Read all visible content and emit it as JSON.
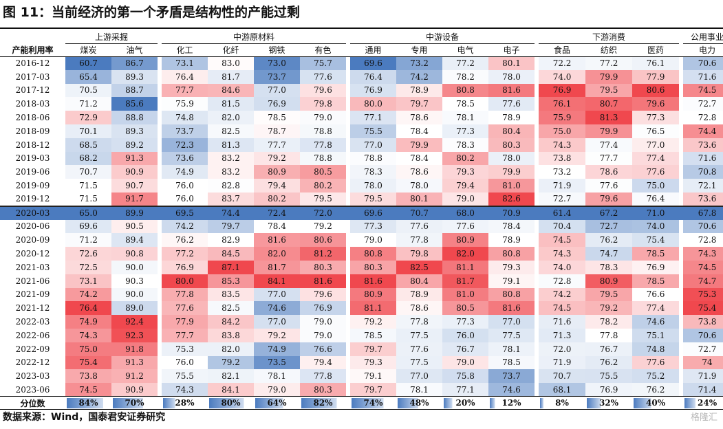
{
  "title": "图 11：当前经济的第一个矛盾是结构性的产能过剩",
  "source": "数据来源：Wind，国泰君安证券研究",
  "watermark": "格隆汇",
  "colors": {
    "low": "#4b7bbf",
    "mid": "#ffffff",
    "high": "#f0484e",
    "highlight_row": "#4b7bbf",
    "percentile_bar": "#4b7bbf"
  },
  "chart_data": {
    "type": "heatmap",
    "row_header": "产能利用率",
    "groups": [
      {
        "name": "上游采掘",
        "span": 2
      },
      {
        "name": "中游原材料",
        "span": 4
      },
      {
        "name": "中游设备",
        "span": 4
      },
      {
        "name": "下游消费",
        "span": 3
      },
      {
        "name": "公用事业",
        "span": 1
      }
    ],
    "columns": [
      "煤炭",
      "油气",
      "化工",
      "化纤",
      "钢铁",
      "有色",
      "通用",
      "专用",
      "电气",
      "电子",
      "食品",
      "纺织",
      "医药",
      "电力"
    ],
    "rows": [
      {
        "label": "2016-12",
        "values": [
          "60.7",
          "86.7",
          "73.1",
          "83.0",
          "73.0",
          "75.7",
          "69.6",
          "73.2",
          "77.2",
          "80.1",
          "72.2",
          "77.2",
          "76.1",
          "70.6"
        ]
      },
      {
        "label": "2017-03",
        "values": [
          "65.4",
          "89.3",
          "76.4",
          "81.7",
          "73.7",
          "77.6",
          "76.4",
          "74.2",
          "78.2",
          "78.0",
          "74.0",
          "79.9",
          "77.9",
          "71.6"
        ]
      },
      {
        "label": "2017-12",
        "values": [
          "70.5",
          "88.7",
          "77.7",
          "84.6",
          "77.0",
          "79.6",
          "76.9",
          "78.9",
          "80.8",
          "81.6",
          "76.9",
          "79.5",
          "80.6",
          "74.5"
        ]
      },
      {
        "label": "2018-03",
        "values": [
          "71.2",
          "85.6",
          "75.9",
          "81.5",
          "76.9",
          "79.8",
          "80.0",
          "79.7",
          "78.5",
          "77.6",
          "76.1",
          "80.7",
          "79.6",
          "72.7"
        ]
      },
      {
        "label": "2018-06",
        "values": [
          "72.9",
          "88.8",
          "74.8",
          "82.0",
          "78.5",
          "79.0",
          "77.1",
          "78.6",
          "78.1",
          "78.9",
          "75.9",
          "81.3",
          "77.3",
          "72.8"
        ]
      },
      {
        "label": "2018-09",
        "values": [
          "70.1",
          "89.3",
          "73.7",
          "82.5",
          "78.7",
          "78.8",
          "75.5",
          "78.4",
          "77.3",
          "80.4",
          "75.0",
          "79.9",
          "76.5",
          "74.4"
        ]
      },
      {
        "label": "2018-12",
        "values": [
          "68.5",
          "89.2",
          "72.3",
          "81.3",
          "77.7",
          "77.8",
          "77.0",
          "79.9",
          "78.3",
          "80.3",
          "74.3",
          "77.4",
          "77.0",
          "73.6"
        ]
      },
      {
        "label": "2019-03",
        "values": [
          "68.2",
          "91.3",
          "73.6",
          "83.2",
          "79.2",
          "78.8",
          "78.8",
          "78.4",
          "80.2",
          "78.0",
          "73.8",
          "77.7",
          "77.4",
          "71.6"
        ]
      },
      {
        "label": "2019-06",
        "values": [
          "70.7",
          "90.9",
          "74.9",
          "83.2",
          "80.9",
          "80.5",
          "78.3",
          "78.6",
          "79.3",
          "79.9",
          "73.2",
          "78.6",
          "77.6",
          "70.8"
        ]
      },
      {
        "label": "2019-09",
        "values": [
          "71.5",
          "90.7",
          "76.0",
          "82.8",
          "79.4",
          "80.2",
          "78.0",
          "78.0",
          "79.4",
          "81.0",
          "71.9",
          "77.6",
          "75.0",
          "72.1"
        ]
      },
      {
        "label": "2019-12",
        "values": [
          "71.5",
          "91.7",
          "76.0",
          "83.7",
          "80.2",
          "79.5",
          "79.5",
          "80.1",
          "79.0",
          "82.6",
          "72.7",
          "79.6",
          "76.4",
          "73.6"
        ]
      },
      {
        "label": "2020-03",
        "values": [
          "65.0",
          "89.9",
          "69.5",
          "74.4",
          "72.4",
          "72.0",
          "69.6",
          "70.7",
          "68.0",
          "70.9",
          "61.4",
          "67.2",
          "71.0",
          "67.8"
        ]
      },
      {
        "label": "2020-06",
        "values": [
          "69.6",
          "90.5",
          "74.2",
          "79.7",
          "78.4",
          "79.2",
          "77.3",
          "77.6",
          "77.6",
          "78.4",
          "70.4",
          "72.7",
          "74.0",
          "70.6"
        ]
      },
      {
        "label": "2020-09",
        "values": [
          "71.2",
          "89.4",
          "76.2",
          "82.9",
          "81.6",
          "80.6",
          "79.0",
          "77.8",
          "80.9",
          "78.9",
          "74.5",
          "76.2",
          "75.4",
          "72.8"
        ]
      },
      {
        "label": "2020-12",
        "values": [
          "72.6",
          "90.8",
          "77.2",
          "84.5",
          "82.0",
          "81.2",
          "80.8",
          "79.8",
          "82.0",
          "80.8",
          "74.3",
          "74.7",
          "78.5",
          "74.3"
        ]
      },
      {
        "label": "2021-03",
        "values": [
          "72.5",
          "90.0",
          "76.9",
          "87.1",
          "81.7",
          "80.3",
          "80.3",
          "82.5",
          "81.1",
          "79.3",
          "74.0",
          "78.3",
          "76.9",
          "74.5"
        ]
      },
      {
        "label": "2021-06",
        "values": [
          "73.1",
          "90.3",
          "80.0",
          "85.3",
          "84.1",
          "81.6",
          "81.6",
          "80.4",
          "81.7",
          "79.1",
          "72.8",
          "80.9",
          "78.5",
          "74.7"
        ]
      },
      {
        "label": "2021-09",
        "values": [
          "74.2",
          "90.0",
          "77.8",
          "83.5",
          "77.0",
          "79.6",
          "80.9",
          "78.9",
          "81.0",
          "80.8",
          "74.2",
          "79.5",
          "76.6",
          "75.3"
        ]
      },
      {
        "label": "2021-12",
        "values": [
          "76.4",
          "89.0",
          "77.6",
          "82.5",
          "74.6",
          "76.9",
          "81.1",
          "78.6",
          "80.5",
          "81.6",
          "74.5",
          "79.2",
          "77.4",
          "75.4"
        ]
      },
      {
        "label": "2022-03",
        "values": [
          "74.9",
          "92.4",
          "77.9",
          "84.2",
          "77.0",
          "79.0",
          "79.2",
          "77.8",
          "77.3",
          "77.0",
          "71.6",
          "78.2",
          "74.6",
          "73.8"
        ]
      },
      {
        "label": "2022-06",
        "values": [
          "74.3",
          "92.3",
          "77.7",
          "83.8",
          "79.2",
          "79.0",
          "78.5",
          "77.5",
          "76.0",
          "77.5",
          "71.3",
          "77.8",
          "75.1",
          "70.6"
        ]
      },
      {
        "label": "2022-09",
        "values": [
          "75.0",
          "91.8",
          "75.3",
          "82.0",
          "74.9",
          "76.6",
          "79.7",
          "77.6",
          "76.7",
          "78.1",
          "72.0",
          "76.7",
          "74.8",
          "72.7"
        ]
      },
      {
        "label": "2022-12",
        "values": [
          "75.4",
          "91.3",
          "76.0",
          "79.2",
          "73.5",
          "79.4",
          "79.3",
          "77.5",
          "79.0",
          "78.5",
          "71.9",
          "76.2",
          "77.6",
          "74"
        ]
      },
      {
        "label": "2023-03",
        "values": [
          "73.8",
          "91.2",
          "75.5",
          "82.1",
          "78.1",
          "77.8",
          "79.1",
          "77.0",
          "75.8",
          "73.7",
          "70.7",
          "75.5",
          "75.2",
          "71.9"
        ]
      },
      {
        "label": "2023-06",
        "values": [
          "74.5",
          "90.9",
          "74.3",
          "84.1",
          "79.0",
          "80.3",
          "79.7",
          "78.1",
          "77.1",
          "74.6",
          "68.1",
          "76.9",
          "76.2",
          "71.4"
        ]
      }
    ],
    "highlighted_row": "2020-03",
    "percentile_row": {
      "label": "分位数",
      "values": [
        "84%",
        "70%",
        "28%",
        "80%",
        "64%",
        "82%",
        "74%",
        "48%",
        "20%",
        "12%",
        "8%",
        "32%",
        "40%",
        "24%"
      ],
      "fractions": [
        0.84,
        0.7,
        0.28,
        0.8,
        0.64,
        0.82,
        0.74,
        0.48,
        0.2,
        0.12,
        0.08,
        0.32,
        0.4,
        0.24
      ]
    }
  }
}
